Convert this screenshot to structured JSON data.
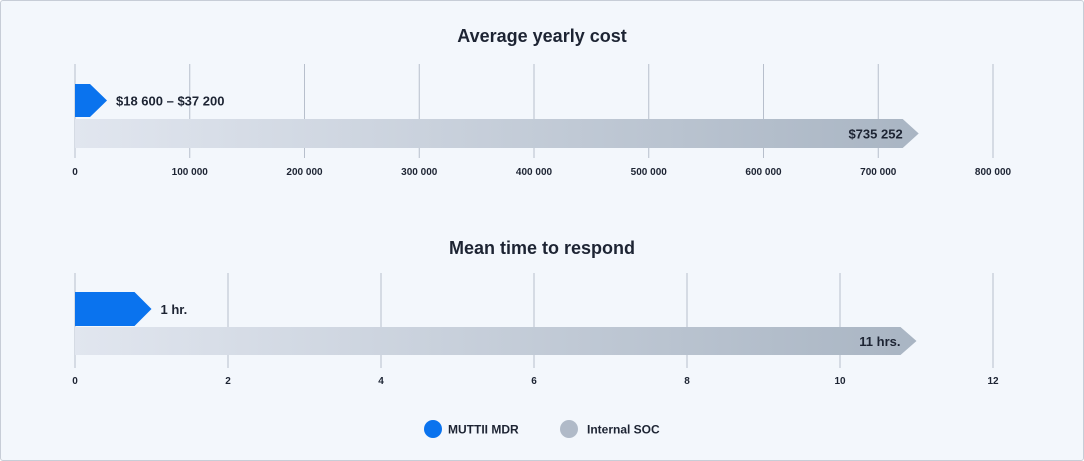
{
  "colors": {
    "mdr": "#0a73ee",
    "soc_light": "#e1e6ef",
    "soc_dark": "#a9b5c3",
    "legend_soc": "#b0bac8",
    "grid": "#b7bfcc",
    "text": "#1d2433"
  },
  "legend": [
    {
      "name": "MUTTII MDR",
      "color_key": "mdr"
    },
    {
      "name": "Internal SOC",
      "color_key": "legend_soc"
    }
  ],
  "chart_data": [
    {
      "type": "bar",
      "title": "Average yearly cost",
      "xlim": [
        0,
        800000
      ],
      "ticks": [
        {
          "value": 0,
          "label": "0"
        },
        {
          "value": 100000,
          "label": "100 000"
        },
        {
          "value": 200000,
          "label": "200 000"
        },
        {
          "value": 300000,
          "label": "300 000"
        },
        {
          "value": 400000,
          "label": "400 000"
        },
        {
          "value": 500000,
          "label": "500 000"
        },
        {
          "value": 600000,
          "label": "600 000"
        },
        {
          "value": 700000,
          "label": "700 000"
        },
        {
          "value": 800000,
          "label": "800 000"
        }
      ],
      "series": [
        {
          "name": "MUTTII MDR",
          "value": 18600,
          "value_high": 37200,
          "label": "$18 600 – $37 200"
        },
        {
          "name": "Internal SOC",
          "value": 735252,
          "label": "$735 252"
        }
      ]
    },
    {
      "type": "bar",
      "title": "Mean time to respond",
      "xlim": [
        0,
        12
      ],
      "ticks": [
        {
          "value": 0,
          "label": "0"
        },
        {
          "value": 2,
          "label": "2"
        },
        {
          "value": 4,
          "label": "4"
        },
        {
          "value": 6,
          "label": "6"
        },
        {
          "value": 8,
          "label": "8"
        },
        {
          "value": 10,
          "label": "10"
        },
        {
          "value": 12,
          "label": "12"
        }
      ],
      "series": [
        {
          "name": "MUTTII MDR",
          "value": 1,
          "label": "1 hr."
        },
        {
          "name": "Internal SOC",
          "value": 11,
          "label": "11 hrs."
        }
      ]
    }
  ]
}
